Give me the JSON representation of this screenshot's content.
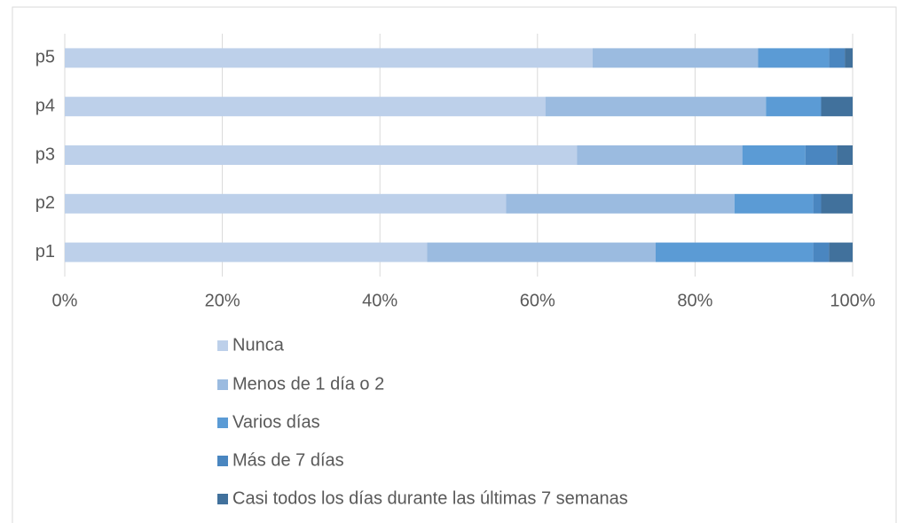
{
  "chart_data": {
    "type": "stacked-barh",
    "categories": [
      "p1",
      "p2",
      "p3",
      "p4",
      "p5"
    ],
    "series": [
      {
        "name": "Nunca",
        "color": "#bdd0ea",
        "values": [
          46,
          56,
          65,
          61,
          67
        ]
      },
      {
        "name": "Menos de 1 día o 2",
        "color": "#9bbbe0",
        "values": [
          29,
          29,
          21,
          28,
          21
        ]
      },
      {
        "name": "Varios días",
        "color": "#5b9bd5",
        "values": [
          20,
          10,
          8,
          7,
          9
        ]
      },
      {
        "name": "Más de 7 días",
        "color": "#4a86c0",
        "values": [
          2,
          1,
          4,
          0,
          2
        ]
      },
      {
        "name": "Casi todos los días durante las últimas 7 semanas",
        "color": "#41719c",
        "values": [
          3,
          4,
          2,
          4,
          1
        ]
      }
    ],
    "xlim": [
      0,
      100
    ],
    "xticks": [
      {
        "value": 0,
        "label": "0%"
      },
      {
        "value": 20,
        "label": "20%"
      },
      {
        "value": 40,
        "label": "40%"
      },
      {
        "value": 60,
        "label": "60%"
      },
      {
        "value": 80,
        "label": "80%"
      },
      {
        "value": 100,
        "label": "100%"
      }
    ],
    "grid": true,
    "legend": "bottom"
  }
}
